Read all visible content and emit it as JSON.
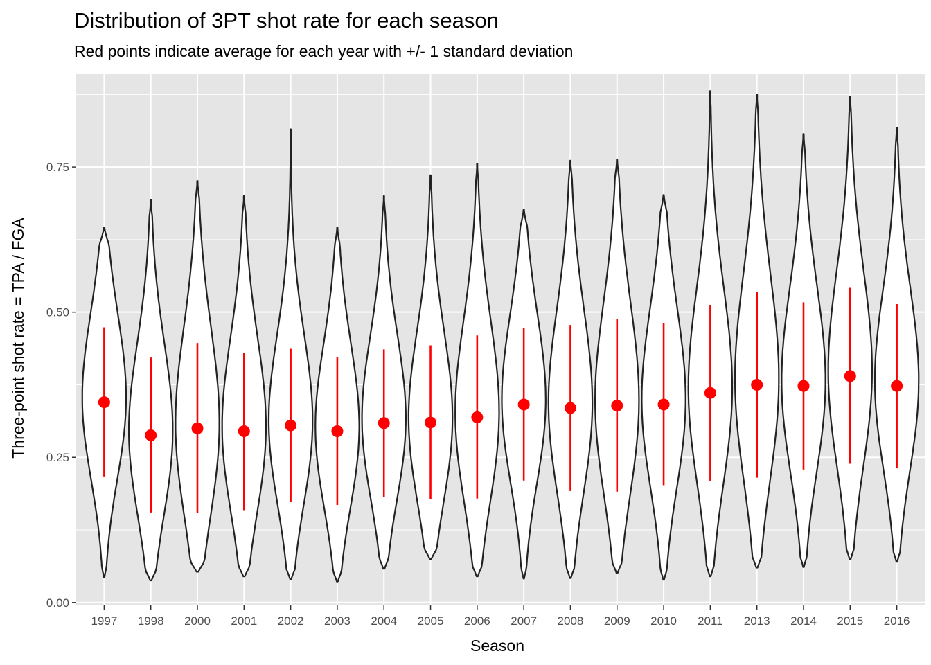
{
  "chart_data": {
    "type": "violin",
    "title": "Distribution of 3PT shot rate for each season",
    "subtitle": "Red points indicate average for each year with +/- 1 standard deviation",
    "xlabel": "Season",
    "ylabel": "Three-point shot rate = TPA / FGA",
    "ylim": [
      -0.005,
      0.91
    ],
    "yticks": [
      0.0,
      0.25,
      0.5,
      0.75
    ],
    "ytick_labels": [
      "0.00",
      "0.25",
      "0.50",
      "0.75"
    ],
    "grid": true,
    "colors": {
      "panel": "#e5e5e5",
      "grid": "#ffffff",
      "violin_fill": "#ffffff",
      "violin_stroke": "#222222",
      "mean": "#ff0000"
    },
    "categories": [
      "1997",
      "1998",
      "2000",
      "2001",
      "2002",
      "2003",
      "2004",
      "2005",
      "2006",
      "2007",
      "2008",
      "2009",
      "2010",
      "2011",
      "2013",
      "2014",
      "2015",
      "2016"
    ],
    "series": [
      {
        "min": 0.043,
        "max": 0.646,
        "mean": 0.345,
        "sd_low": 0.217,
        "sd_high": 0.474
      },
      {
        "min": 0.038,
        "max": 0.694,
        "mean": 0.288,
        "sd_low": 0.155,
        "sd_high": 0.422
      },
      {
        "min": 0.053,
        "max": 0.726,
        "mean": 0.3,
        "sd_low": 0.154,
        "sd_high": 0.447
      },
      {
        "min": 0.045,
        "max": 0.7,
        "mean": 0.295,
        "sd_low": 0.159,
        "sd_high": 0.43
      },
      {
        "min": 0.04,
        "max": 0.815,
        "mean": 0.305,
        "sd_low": 0.174,
        "sd_high": 0.437
      },
      {
        "min": 0.036,
        "max": 0.646,
        "mean": 0.295,
        "sd_low": 0.168,
        "sd_high": 0.423
      },
      {
        "min": 0.058,
        "max": 0.7,
        "mean": 0.309,
        "sd_low": 0.182,
        "sd_high": 0.436
      },
      {
        "min": 0.075,
        "max": 0.736,
        "mean": 0.31,
        "sd_low": 0.178,
        "sd_high": 0.443
      },
      {
        "min": 0.045,
        "max": 0.756,
        "mean": 0.319,
        "sd_low": 0.179,
        "sd_high": 0.46
      },
      {
        "min": 0.041,
        "max": 0.677,
        "mean": 0.341,
        "sd_low": 0.21,
        "sd_high": 0.473
      },
      {
        "min": 0.042,
        "max": 0.761,
        "mean": 0.335,
        "sd_low": 0.192,
        "sd_high": 0.478
      },
      {
        "min": 0.051,
        "max": 0.763,
        "mean": 0.339,
        "sd_low": 0.191,
        "sd_high": 0.488
      },
      {
        "min": 0.039,
        "max": 0.702,
        "mean": 0.341,
        "sd_low": 0.202,
        "sd_high": 0.481
      },
      {
        "min": 0.045,
        "max": 0.881,
        "mean": 0.361,
        "sd_low": 0.209,
        "sd_high": 0.512
      },
      {
        "min": 0.06,
        "max": 0.875,
        "mean": 0.375,
        "sd_low": 0.215,
        "sd_high": 0.535
      },
      {
        "min": 0.061,
        "max": 0.807,
        "mean": 0.373,
        "sd_low": 0.229,
        "sd_high": 0.517
      },
      {
        "min": 0.074,
        "max": 0.871,
        "mean": 0.39,
        "sd_low": 0.239,
        "sd_high": 0.542
      },
      {
        "min": 0.07,
        "max": 0.818,
        "mean": 0.373,
        "sd_low": 0.231,
        "sd_high": 0.514
      }
    ]
  }
}
